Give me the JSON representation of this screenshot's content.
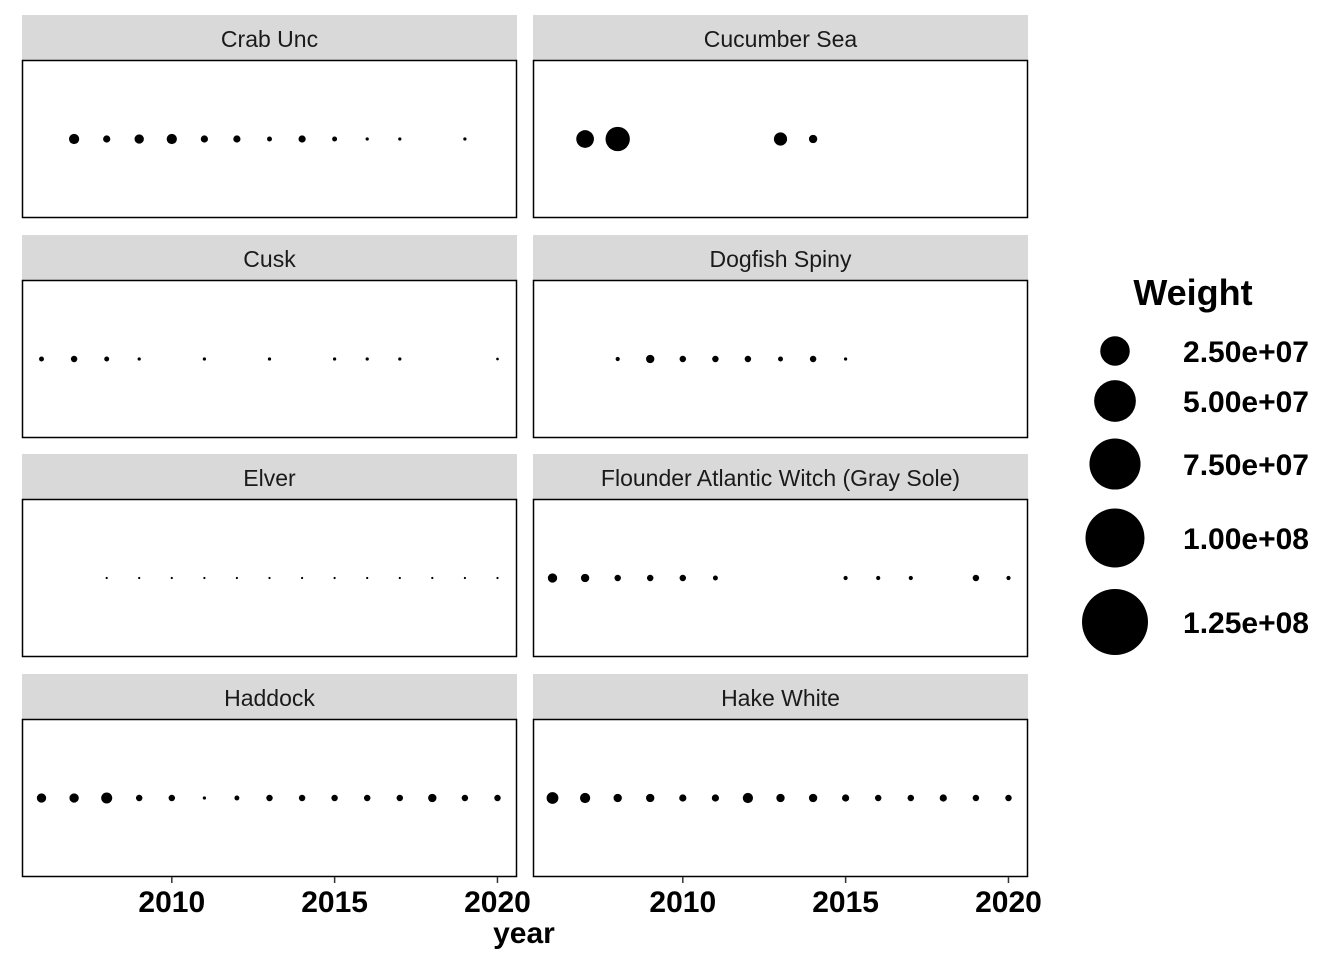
{
  "chart_data": {
    "type": "scatter",
    "facet_by": "species",
    "x": "year",
    "y": "",
    "size": "Weight",
    "xlabel": "year",
    "ylabel": "",
    "xlim": [
      2005.4,
      2020.6
    ],
    "x_ticks": [
      2010,
      2015,
      2020
    ],
    "grid": false,
    "legend": {
      "title": "Weight",
      "placement": "right",
      "breaks": [
        25000000,
        50000000,
        75000000,
        100000000,
        125000000
      ],
      "labels": [
        "2.50e+07",
        "5.00e+07",
        "7.50e+07",
        "1.00e+08",
        "1.25e+08"
      ]
    },
    "panels": [
      {
        "name": "Crab Unc",
        "points": [
          [
            2007,
            3000000
          ],
          [
            2008,
            1500000
          ],
          [
            2009,
            2500000
          ],
          [
            2010,
            3000000
          ],
          [
            2011,
            1500000
          ],
          [
            2012,
            1500000
          ],
          [
            2013,
            700000
          ],
          [
            2014,
            1500000
          ],
          [
            2015,
            700000
          ],
          [
            2016,
            300000
          ],
          [
            2017,
            300000
          ],
          [
            2019,
            300000
          ]
        ]
      },
      {
        "name": "Cucumber Sea",
        "points": [
          [
            2007,
            9000000
          ],
          [
            2008,
            17000000
          ],
          [
            2013,
            5000000
          ],
          [
            2014,
            2000000
          ]
        ]
      },
      {
        "name": "Cusk",
        "points": [
          [
            2006,
            700000
          ],
          [
            2007,
            1200000
          ],
          [
            2008,
            700000
          ],
          [
            2009,
            300000
          ],
          [
            2011,
            300000
          ],
          [
            2013,
            300000
          ],
          [
            2015,
            300000
          ],
          [
            2016,
            300000
          ],
          [
            2017,
            300000
          ],
          [
            2020,
            200000
          ]
        ]
      },
      {
        "name": "Dogfish Spiny",
        "points": [
          [
            2008,
            500000
          ],
          [
            2009,
            2000000
          ],
          [
            2010,
            1200000
          ],
          [
            2011,
            1200000
          ],
          [
            2012,
            1200000
          ],
          [
            2013,
            700000
          ],
          [
            2014,
            1200000
          ],
          [
            2015,
            300000
          ]
        ]
      },
      {
        "name": "Elver",
        "points": [
          [
            2008,
            100000
          ],
          [
            2009,
            100000
          ],
          [
            2010,
            100000
          ],
          [
            2011,
            100000
          ],
          [
            2012,
            100000
          ],
          [
            2013,
            100000
          ],
          [
            2014,
            100000
          ],
          [
            2015,
            100000
          ],
          [
            2016,
            100000
          ],
          [
            2017,
            100000
          ],
          [
            2018,
            100000
          ],
          [
            2019,
            100000
          ],
          [
            2020,
            100000
          ]
        ]
      },
      {
        "name": "Flounder Atlantic Witch (Gray Sole)",
        "points": [
          [
            2006,
            2500000
          ],
          [
            2007,
            2000000
          ],
          [
            2008,
            1200000
          ],
          [
            2009,
            1200000
          ],
          [
            2010,
            1200000
          ],
          [
            2011,
            700000
          ],
          [
            2015,
            500000
          ],
          [
            2016,
            500000
          ],
          [
            2017,
            500000
          ],
          [
            2019,
            1200000
          ],
          [
            2020,
            500000
          ]
        ]
      },
      {
        "name": "Haddock",
        "points": [
          [
            2006,
            2500000
          ],
          [
            2007,
            2500000
          ],
          [
            2008,
            3500000
          ],
          [
            2009,
            1200000
          ],
          [
            2010,
            1200000
          ],
          [
            2011,
            300000
          ],
          [
            2012,
            700000
          ],
          [
            2013,
            1200000
          ],
          [
            2014,
            1200000
          ],
          [
            2015,
            1200000
          ],
          [
            2016,
            1200000
          ],
          [
            2017,
            1200000
          ],
          [
            2018,
            2000000
          ],
          [
            2019,
            1200000
          ],
          [
            2020,
            1200000
          ]
        ]
      },
      {
        "name": "Hake White",
        "points": [
          [
            2006,
            4000000
          ],
          [
            2007,
            3000000
          ],
          [
            2008,
            2000000
          ],
          [
            2009,
            2000000
          ],
          [
            2010,
            1500000
          ],
          [
            2011,
            1500000
          ],
          [
            2012,
            3000000
          ],
          [
            2013,
            2000000
          ],
          [
            2014,
            2000000
          ],
          [
            2015,
            1500000
          ],
          [
            2016,
            1200000
          ],
          [
            2017,
            1200000
          ],
          [
            2018,
            1500000
          ],
          [
            2019,
            1200000
          ],
          [
            2020,
            1200000
          ]
        ]
      }
    ]
  }
}
